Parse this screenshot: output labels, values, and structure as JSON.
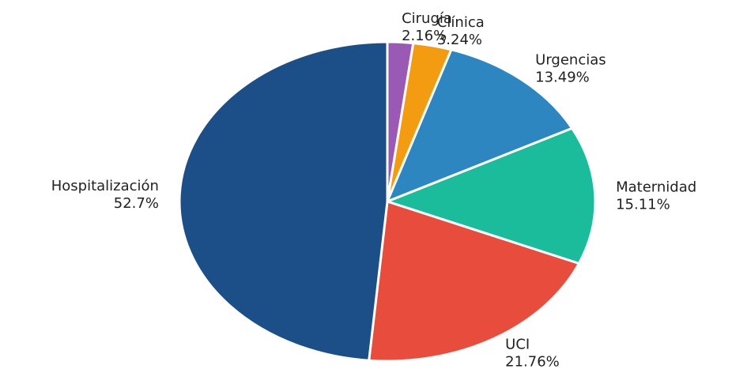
{
  "chart_data": {
    "type": "pie",
    "categories": [
      "Cirugía",
      "Clínica",
      "Urgencias",
      "Maternidad",
      "UCI",
      "Hospitalización"
    ],
    "values": [
      2.16,
      3.24,
      13.49,
      15.11,
      21.76,
      52.7
    ],
    "value_labels": [
      "2.16%",
      "3.24%",
      "13.49%",
      "15.11%",
      "21.76%",
      "52.7%"
    ],
    "colors": [
      "#9b59b6",
      "#f39c12",
      "#2e86c1",
      "#1abc9c",
      "#e74c3c",
      "#1c4e87"
    ]
  }
}
